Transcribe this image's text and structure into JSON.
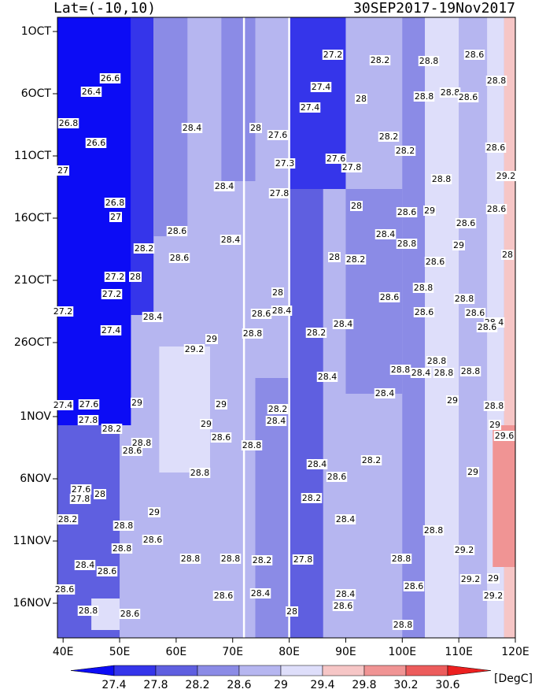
{
  "chart_data": {
    "type": "contour",
    "title_left": "Lat=(-10,10)",
    "title_right": "30SEP2017-19Nov2017",
    "xlim": [
      39,
      120
    ],
    "xticks": [
      {
        "value": 40,
        "label": "40E"
      },
      {
        "value": 50,
        "label": "50E"
      },
      {
        "value": 60,
        "label": "60E"
      },
      {
        "value": 70,
        "label": "70E"
      },
      {
        "value": 80,
        "label": "80E"
      },
      {
        "value": 90,
        "label": "90E"
      },
      {
        "value": 100,
        "label": "100E"
      },
      {
        "value": 110,
        "label": "110E"
      },
      {
        "value": 120,
        "label": "120E"
      }
    ],
    "y_categories": [
      "1OCT",
      "6OCT",
      "11OCT",
      "16OCT",
      "21OCT",
      "26OCT",
      "1NOV",
      "6NOV",
      "11NOV",
      "16NOV"
    ],
    "levels": [
      27.4,
      27.8,
      28.2,
      28.6,
      29,
      29.4,
      29.8,
      30.2,
      30.6
    ],
    "colors": [
      "#0c0cf5",
      "#3535ea",
      "#5f5fe0",
      "#8b8be6",
      "#b6b6f0",
      "#dedefa",
      "#f6c6c6",
      "#f09494",
      "#ec5c5c",
      "#ec2020"
    ],
    "unit": "[DegC]",
    "contour_labels": [
      27.2,
      28.2,
      28.8,
      28.6,
      26.6,
      27.4,
      28.8,
      26.4,
      28,
      28.8,
      28.8,
      28.6,
      27.4,
      26.8,
      28.4,
      28,
      27.6,
      28.2,
      26.6,
      28.2,
      28.6,
      27,
      27.3,
      27.6,
      27.8,
      29.2,
      28.4,
      28.8,
      27.8,
      26.8,
      28,
      28.6,
      29,
      28.6,
      27,
      28.6,
      28.6,
      28.4,
      28.4,
      28.8,
      29,
      28.2,
      28.6,
      28,
      28.2,
      28.6,
      28,
      27.2,
      28,
      28.8,
      27.2,
      28,
      28.6,
      28.8,
      27.2,
      28.4,
      28.6,
      28.4,
      28.6,
      28.6,
      28.4,
      27.4,
      28.8,
      28.2,
      28.4,
      28.6,
      29.2,
      29,
      28.8,
      28.4,
      28.8,
      28.4,
      28.8,
      28.8,
      28.4,
      27.4,
      27.6,
      29,
      29,
      28.2,
      29,
      28.8,
      27.8,
      29,
      28.4,
      29,
      28.2,
      28.6,
      28.8,
      29.6,
      28.8,
      28.6,
      28.2,
      28.4,
      28.8,
      28.6,
      29,
      27.6,
      27.8,
      28,
      28.2,
      29,
      28.2,
      28.8,
      28.4,
      28.8,
      28.6,
      28.8,
      29.2,
      28.8,
      28.8,
      28.2,
      27.8,
      28.8,
      28.4,
      28.6,
      29.2,
      29,
      28.6,
      28.6,
      28.4,
      28.6,
      28.4,
      29.2,
      28.6,
      28.8,
      28.6,
      28,
      28.8
    ]
  }
}
